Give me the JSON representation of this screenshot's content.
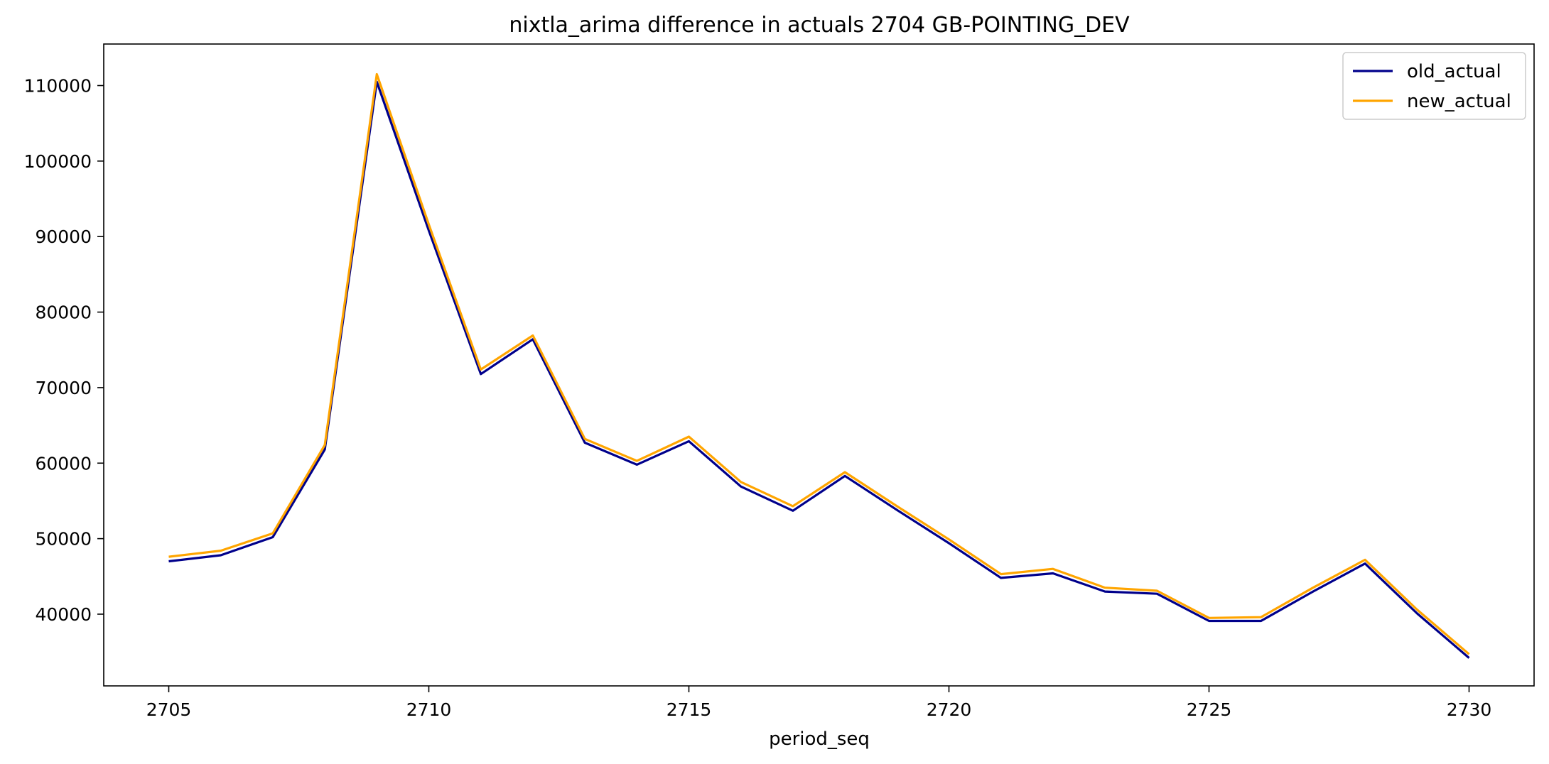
{
  "chart_data": {
    "type": "line",
    "title": "nixtla_arima difference in actuals 2704 GB-POINTING_DEV",
    "xlabel": "period_seq",
    "ylabel": "",
    "xlim": [
      2703.75,
      2731.25
    ],
    "ylim": [
      30500,
      115500
    ],
    "xticks": [
      2705,
      2710,
      2715,
      2720,
      2725,
      2730
    ],
    "yticks": [
      40000,
      50000,
      60000,
      70000,
      80000,
      90000,
      100000,
      110000
    ],
    "x": [
      2705,
      2706,
      2707,
      2708,
      2709,
      2710,
      2711,
      2712,
      2713,
      2714,
      2715,
      2716,
      2717,
      2718,
      2719,
      2720,
      2721,
      2722,
      2723,
      2724,
      2725,
      2726,
      2727,
      2728,
      2729,
      2730
    ],
    "series": [
      {
        "name": "old_actual",
        "color": "#00008b",
        "values": [
          47000,
          47800,
          50200,
          61800,
          110500,
          90800,
          71800,
          76400,
          62700,
          59800,
          62900,
          56900,
          53700,
          58300,
          53800,
          49400,
          44800,
          45400,
          43000,
          42700,
          39100,
          39100,
          43000,
          46700,
          40100,
          34200
        ]
      },
      {
        "name": "new_actual",
        "color": "#ffa500",
        "values": [
          47600,
          48400,
          50700,
          62400,
          111500,
          91600,
          72400,
          76900,
          63200,
          60300,
          63500,
          57500,
          54300,
          58800,
          54300,
          49900,
          45300,
          46000,
          43500,
          43100,
          39500,
          39600,
          43500,
          47200,
          40600,
          34700
        ]
      }
    ],
    "legend": {
      "position": "top-right"
    },
    "grid": false
  }
}
